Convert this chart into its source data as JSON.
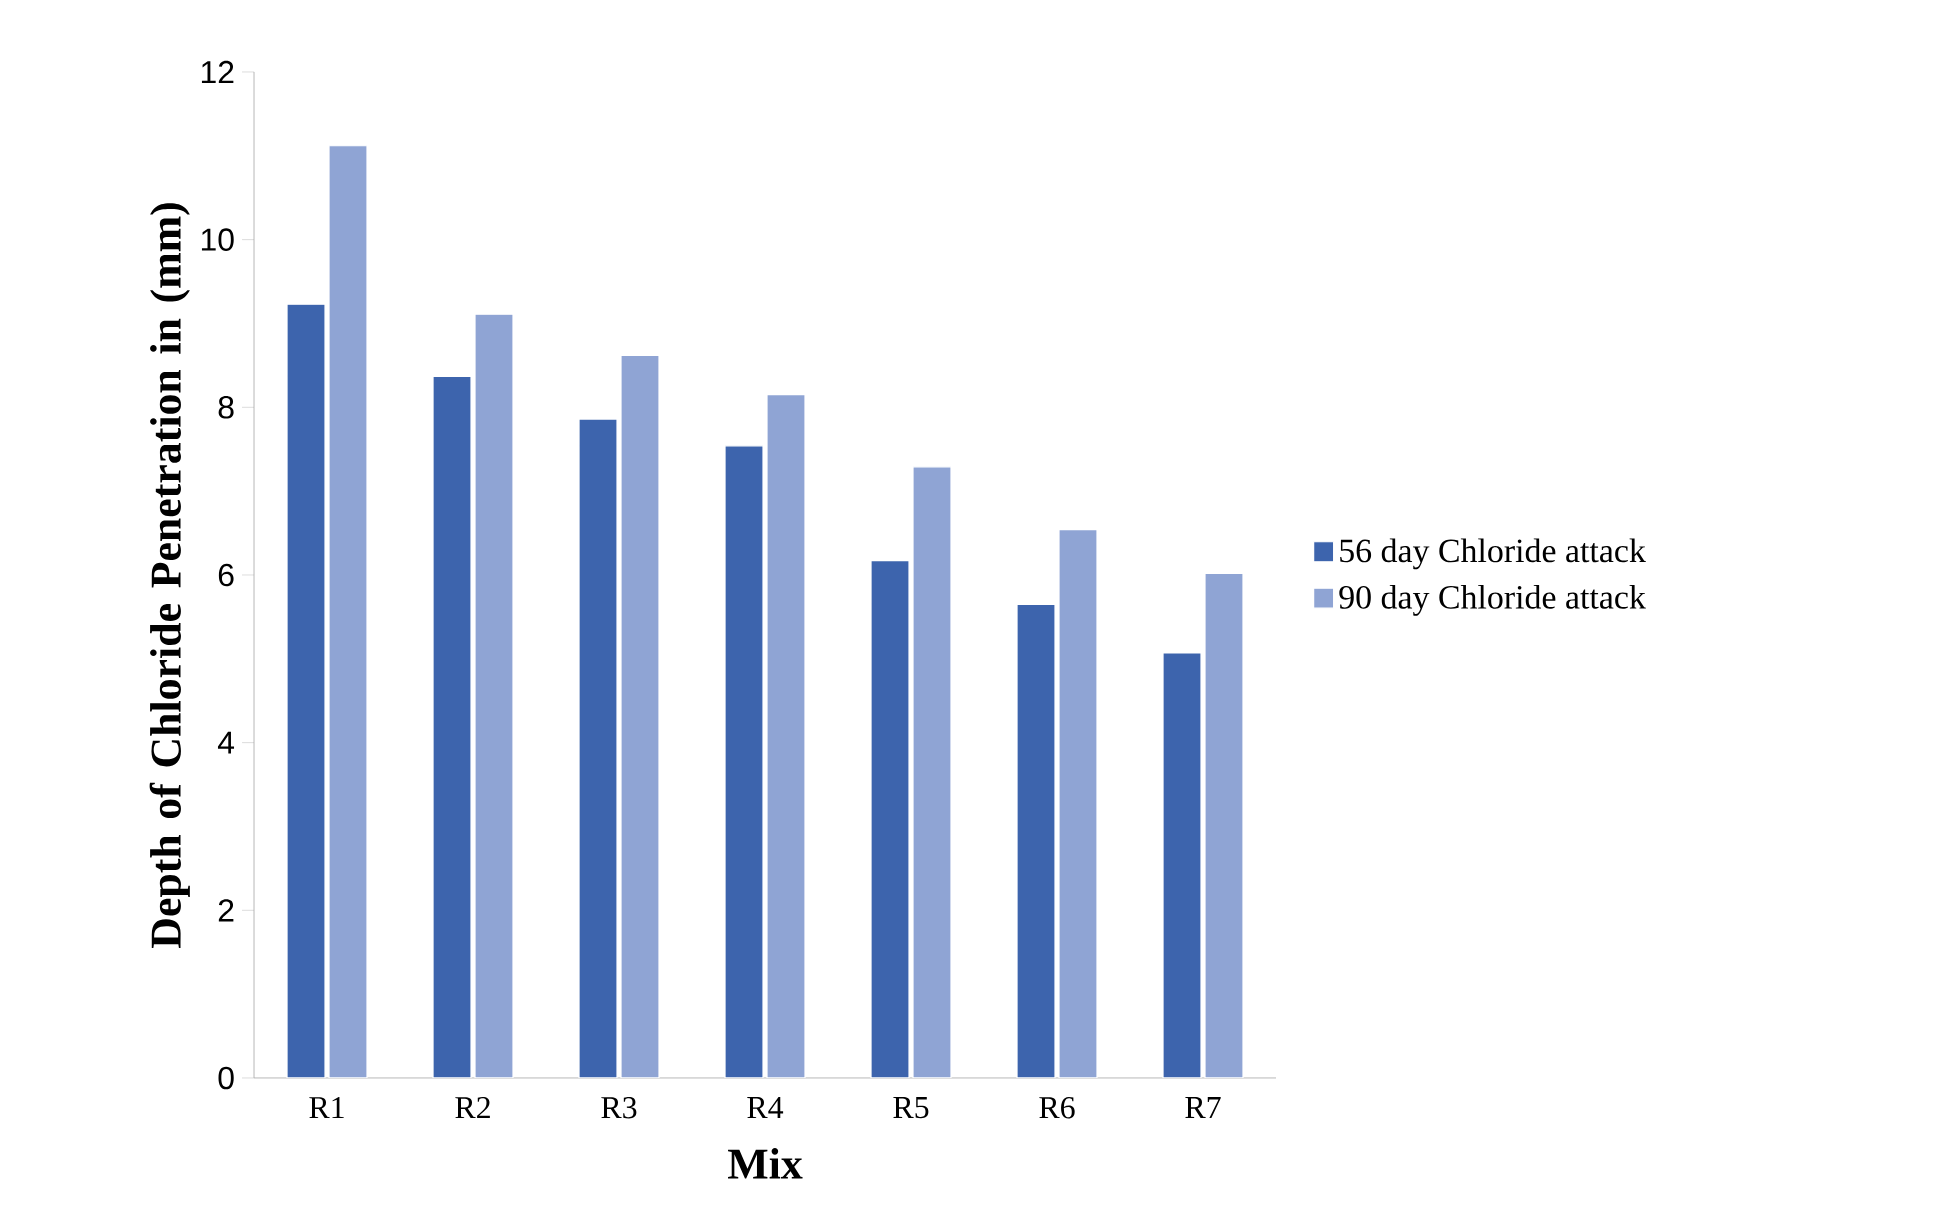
{
  "chart_data": {
    "type": "bar",
    "xlabel": "Mix",
    "ylabel": "Depth of Chloride Penetration in (mm)",
    "categories": [
      "R1",
      "R2",
      "R3",
      "R4",
      "R5",
      "R6",
      "R7"
    ],
    "series": [
      {
        "name": "56 day Chloride attack",
        "color": "#3d64ad",
        "values": [
          9.23,
          8.37,
          7.86,
          7.54,
          6.17,
          5.65,
          5.07
        ]
      },
      {
        "name": "90 day Chloride attack",
        "color": "#8fa4d4",
        "values": [
          11.12,
          9.11,
          8.62,
          8.15,
          7.29,
          6.54,
          6.02
        ]
      }
    ],
    "ylim": [
      0,
      12
    ],
    "yticks": [
      0,
      2,
      4,
      6,
      8,
      10,
      12
    ],
    "grid": false,
    "legend": "right"
  }
}
